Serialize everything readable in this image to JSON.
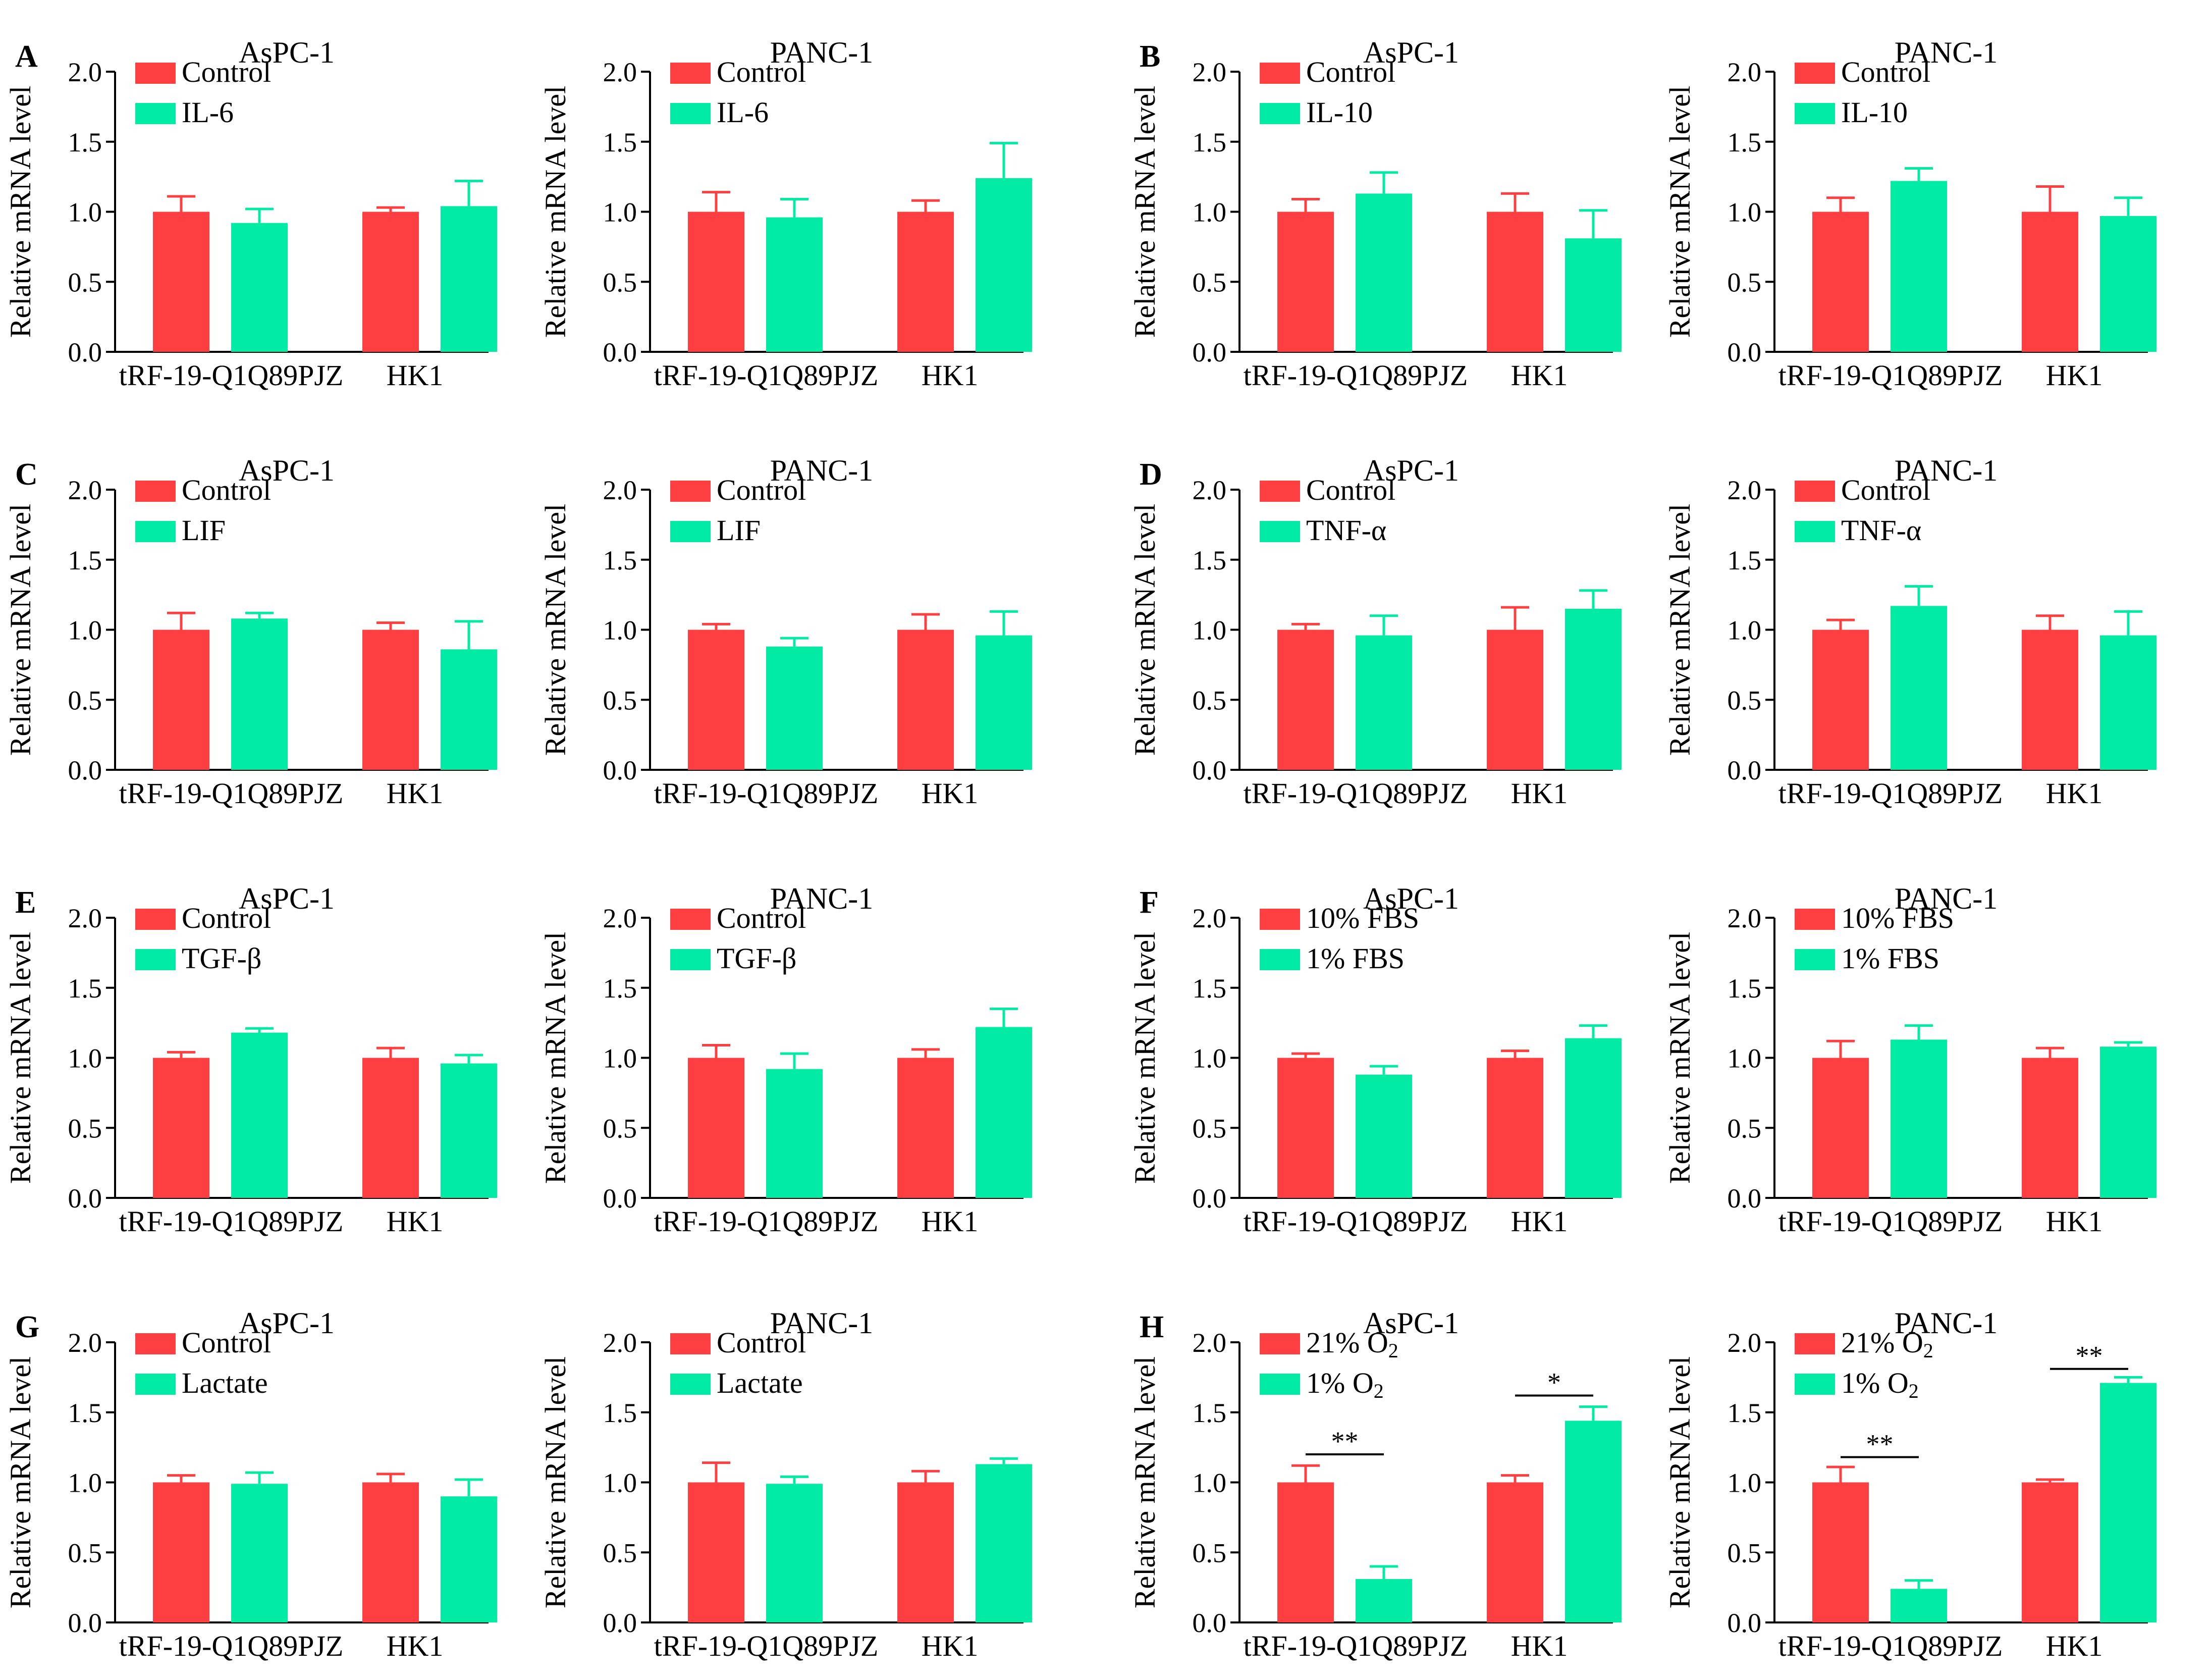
{
  "figure": {
    "colors": {
      "control": "#fd3f41",
      "treatment": "#01eba5"
    },
    "tick_labels": [
      "0.0",
      "0.5",
      "1.0",
      "1.5",
      "2.0"
    ]
  },
  "chart_data": [
    {
      "panel": "A",
      "type": "bar",
      "title": "AsPC-1",
      "ylabel": "Relative mRNA level",
      "ylim": [
        0,
        2
      ],
      "categories": [
        "tRF-19-Q1Q89PJZ",
        "HK1"
      ],
      "legend": [
        {
          "name": "Control",
          "sub": ""
        },
        {
          "name": "IL-6",
          "sub": ""
        }
      ],
      "series": [
        {
          "name": "Control",
          "values": [
            1.0,
            1.0
          ],
          "errors": [
            0.11,
            0.03
          ]
        },
        {
          "name": "IL-6",
          "values": [
            0.92,
            1.04
          ],
          "errors": [
            0.1,
            0.18
          ]
        }
      ],
      "significance": []
    },
    {
      "panel": "",
      "type": "bar",
      "title": "PANC-1",
      "ylabel": "Relative mRNA level",
      "ylim": [
        0,
        2
      ],
      "categories": [
        "tRF-19-Q1Q89PJZ",
        "HK1"
      ],
      "legend": [
        {
          "name": "Control",
          "sub": ""
        },
        {
          "name": "IL-6",
          "sub": ""
        }
      ],
      "series": [
        {
          "name": "Control",
          "values": [
            1.0,
            1.0
          ],
          "errors": [
            0.14,
            0.08
          ]
        },
        {
          "name": "IL-6",
          "values": [
            0.96,
            1.24
          ],
          "errors": [
            0.13,
            0.25
          ]
        }
      ],
      "significance": []
    },
    {
      "panel": "B",
      "type": "bar",
      "title": "AsPC-1",
      "ylabel": "Relative mRNA level",
      "ylim": [
        0,
        2
      ],
      "categories": [
        "tRF-19-Q1Q89PJZ",
        "HK1"
      ],
      "legend": [
        {
          "name": "Control",
          "sub": ""
        },
        {
          "name": "IL-10",
          "sub": ""
        }
      ],
      "series": [
        {
          "name": "Control",
          "values": [
            1.0,
            1.0
          ],
          "errors": [
            0.09,
            0.13
          ]
        },
        {
          "name": "IL-10",
          "values": [
            1.13,
            0.81
          ],
          "errors": [
            0.15,
            0.2
          ]
        }
      ],
      "significance": []
    },
    {
      "panel": "",
      "type": "bar",
      "title": "PANC-1",
      "ylabel": "Relative mRNA level",
      "ylim": [
        0,
        2
      ],
      "categories": [
        "tRF-19-Q1Q89PJZ",
        "HK1"
      ],
      "legend": [
        {
          "name": "Control",
          "sub": ""
        },
        {
          "name": "IL-10",
          "sub": ""
        }
      ],
      "series": [
        {
          "name": "Control",
          "values": [
            1.0,
            1.0
          ],
          "errors": [
            0.1,
            0.18
          ]
        },
        {
          "name": "IL-10",
          "values": [
            1.22,
            0.97
          ],
          "errors": [
            0.09,
            0.13
          ]
        }
      ],
      "significance": []
    },
    {
      "panel": "C",
      "type": "bar",
      "title": "AsPC-1",
      "ylabel": "Relative mRNA level",
      "ylim": [
        0,
        2
      ],
      "categories": [
        "tRF-19-Q1Q89PJZ",
        "HK1"
      ],
      "legend": [
        {
          "name": "Control",
          "sub": ""
        },
        {
          "name": "LIF",
          "sub": ""
        }
      ],
      "series": [
        {
          "name": "Control",
          "values": [
            1.0,
            1.0
          ],
          "errors": [
            0.12,
            0.05
          ]
        },
        {
          "name": "LIF",
          "values": [
            1.08,
            0.86
          ],
          "errors": [
            0.04,
            0.2
          ]
        }
      ],
      "significance": []
    },
    {
      "panel": "",
      "type": "bar",
      "title": "PANC-1",
      "ylabel": "Relative mRNA level",
      "ylim": [
        0,
        2
      ],
      "categories": [
        "tRF-19-Q1Q89PJZ",
        "HK1"
      ],
      "legend": [
        {
          "name": "Control",
          "sub": ""
        },
        {
          "name": "LIF",
          "sub": ""
        }
      ],
      "series": [
        {
          "name": "Control",
          "values": [
            1.0,
            1.0
          ],
          "errors": [
            0.04,
            0.11
          ]
        },
        {
          "name": "LIF",
          "values": [
            0.88,
            0.96
          ],
          "errors": [
            0.06,
            0.17
          ]
        }
      ],
      "significance": []
    },
    {
      "panel": "D",
      "type": "bar",
      "title": "AsPC-1",
      "ylabel": "Relative mRNA level",
      "ylim": [
        0,
        2
      ],
      "categories": [
        "tRF-19-Q1Q89PJZ",
        "HK1"
      ],
      "legend": [
        {
          "name": "Control",
          "sub": ""
        },
        {
          "name": "TNF-α",
          "sub": ""
        }
      ],
      "series": [
        {
          "name": "Control",
          "values": [
            1.0,
            1.0
          ],
          "errors": [
            0.04,
            0.16
          ]
        },
        {
          "name": "TNF-α",
          "values": [
            0.96,
            1.15
          ],
          "errors": [
            0.14,
            0.13
          ]
        }
      ],
      "significance": []
    },
    {
      "panel": "",
      "type": "bar",
      "title": "PANC-1",
      "ylabel": "Relative mRNA level",
      "ylim": [
        0,
        2
      ],
      "categories": [
        "tRF-19-Q1Q89PJZ",
        "HK1"
      ],
      "legend": [
        {
          "name": "Control",
          "sub": ""
        },
        {
          "name": "TNF-α",
          "sub": ""
        }
      ],
      "series": [
        {
          "name": "Control",
          "values": [
            1.0,
            1.0
          ],
          "errors": [
            0.07,
            0.1
          ]
        },
        {
          "name": "TNF-α",
          "values": [
            1.17,
            0.96
          ],
          "errors": [
            0.14,
            0.17
          ]
        }
      ],
      "significance": []
    },
    {
      "panel": "E",
      "type": "bar",
      "title": "AsPC-1",
      "ylabel": "Relative mRNA level",
      "ylim": [
        0,
        2
      ],
      "categories": [
        "tRF-19-Q1Q89PJZ",
        "HK1"
      ],
      "legend": [
        {
          "name": "Control",
          "sub": ""
        },
        {
          "name": "TGF-β",
          "sub": ""
        }
      ],
      "series": [
        {
          "name": "Control",
          "values": [
            1.0,
            1.0
          ],
          "errors": [
            0.04,
            0.07
          ]
        },
        {
          "name": "TGF-β",
          "values": [
            1.18,
            0.96
          ],
          "errors": [
            0.03,
            0.06
          ]
        }
      ],
      "significance": []
    },
    {
      "panel": "",
      "type": "bar",
      "title": "PANC-1",
      "ylabel": "Relative mRNA level",
      "ylim": [
        0,
        2
      ],
      "categories": [
        "tRF-19-Q1Q89PJZ",
        "HK1"
      ],
      "legend": [
        {
          "name": "Control",
          "sub": ""
        },
        {
          "name": "TGF-β",
          "sub": ""
        }
      ],
      "series": [
        {
          "name": "Control",
          "values": [
            1.0,
            1.0
          ],
          "errors": [
            0.09,
            0.06
          ]
        },
        {
          "name": "TGF-β",
          "values": [
            0.92,
            1.22
          ],
          "errors": [
            0.11,
            0.13
          ]
        }
      ],
      "significance": []
    },
    {
      "panel": "F",
      "type": "bar",
      "title": "AsPC-1",
      "ylabel": "Relative mRNA level",
      "ylim": [
        0,
        2
      ],
      "categories": [
        "tRF-19-Q1Q89PJZ",
        "HK1"
      ],
      "legend": [
        {
          "name": "10% FBS",
          "sub": ""
        },
        {
          "name": "1% FBS",
          "sub": ""
        }
      ],
      "series": [
        {
          "name": "10% FBS",
          "values": [
            1.0,
            1.0
          ],
          "errors": [
            0.03,
            0.05
          ]
        },
        {
          "name": "1% FBS",
          "values": [
            0.88,
            1.14
          ],
          "errors": [
            0.06,
            0.09
          ]
        }
      ],
      "significance": []
    },
    {
      "panel": "",
      "type": "bar",
      "title": "PANC-1",
      "ylabel": "Relative mRNA level",
      "ylim": [
        0,
        2
      ],
      "categories": [
        "tRF-19-Q1Q89PJZ",
        "HK1"
      ],
      "legend": [
        {
          "name": "10% FBS",
          "sub": ""
        },
        {
          "name": "1% FBS",
          "sub": ""
        }
      ],
      "series": [
        {
          "name": "10% FBS",
          "values": [
            1.0,
            1.0
          ],
          "errors": [
            0.12,
            0.07
          ]
        },
        {
          "name": "1% FBS",
          "values": [
            1.13,
            1.08
          ],
          "errors": [
            0.1,
            0.03
          ]
        }
      ],
      "significance": []
    },
    {
      "panel": "G",
      "type": "bar",
      "title": "AsPC-1",
      "ylabel": "Relative mRNA level",
      "ylim": [
        0,
        2
      ],
      "categories": [
        "tRF-19-Q1Q89PJZ",
        "HK1"
      ],
      "legend": [
        {
          "name": "Control",
          "sub": ""
        },
        {
          "name": "Lactate",
          "sub": ""
        }
      ],
      "series": [
        {
          "name": "Control",
          "values": [
            1.0,
            1.0
          ],
          "errors": [
            0.05,
            0.06
          ]
        },
        {
          "name": "Lactate",
          "values": [
            0.99,
            0.9
          ],
          "errors": [
            0.08,
            0.12
          ]
        }
      ],
      "significance": []
    },
    {
      "panel": "",
      "type": "bar",
      "title": "PANC-1",
      "ylabel": "Relative mRNA level",
      "ylim": [
        0,
        2
      ],
      "categories": [
        "tRF-19-Q1Q89PJZ",
        "HK1"
      ],
      "legend": [
        {
          "name": "Control",
          "sub": ""
        },
        {
          "name": "Lactate",
          "sub": ""
        }
      ],
      "series": [
        {
          "name": "Control",
          "values": [
            1.0,
            1.0
          ],
          "errors": [
            0.14,
            0.08
          ]
        },
        {
          "name": "Lactate",
          "values": [
            0.99,
            1.13
          ],
          "errors": [
            0.05,
            0.04
          ]
        }
      ],
      "significance": []
    },
    {
      "panel": "H",
      "type": "bar",
      "title": "AsPC-1",
      "ylabel": "Relative mRNA level",
      "ylim": [
        0,
        2
      ],
      "categories": [
        "tRF-19-Q1Q89PJZ",
        "HK1"
      ],
      "legend": [
        {
          "name": "21% O",
          "sub": "2"
        },
        {
          "name": "1% O",
          "sub": "2"
        }
      ],
      "series": [
        {
          "name": "21% O2",
          "values": [
            1.0,
            1.0
          ],
          "errors": [
            0.12,
            0.05
          ]
        },
        {
          "name": "1% O2",
          "values": [
            0.31,
            1.44
          ],
          "errors": [
            0.09,
            0.1
          ]
        }
      ],
      "significance": [
        {
          "category": 0,
          "label": "**",
          "at": 1.2
        },
        {
          "category": 1,
          "label": "*",
          "at": 1.62
        }
      ]
    },
    {
      "panel": "",
      "type": "bar",
      "title": "PANC-1",
      "ylabel": "Relative mRNA level",
      "ylim": [
        0,
        2
      ],
      "categories": [
        "tRF-19-Q1Q89PJZ",
        "HK1"
      ],
      "legend": [
        {
          "name": "21% O",
          "sub": "2"
        },
        {
          "name": "1% O",
          "sub": "2"
        }
      ],
      "series": [
        {
          "name": "21% O2",
          "values": [
            1.0,
            1.0
          ],
          "errors": [
            0.11,
            0.02
          ]
        },
        {
          "name": "1% O2",
          "values": [
            0.24,
            1.71
          ],
          "errors": [
            0.06,
            0.04
          ]
        }
      ],
      "significance": [
        {
          "category": 0,
          "label": "**",
          "at": 1.18
        },
        {
          "category": 1,
          "label": "**",
          "at": 1.81
        }
      ]
    }
  ]
}
